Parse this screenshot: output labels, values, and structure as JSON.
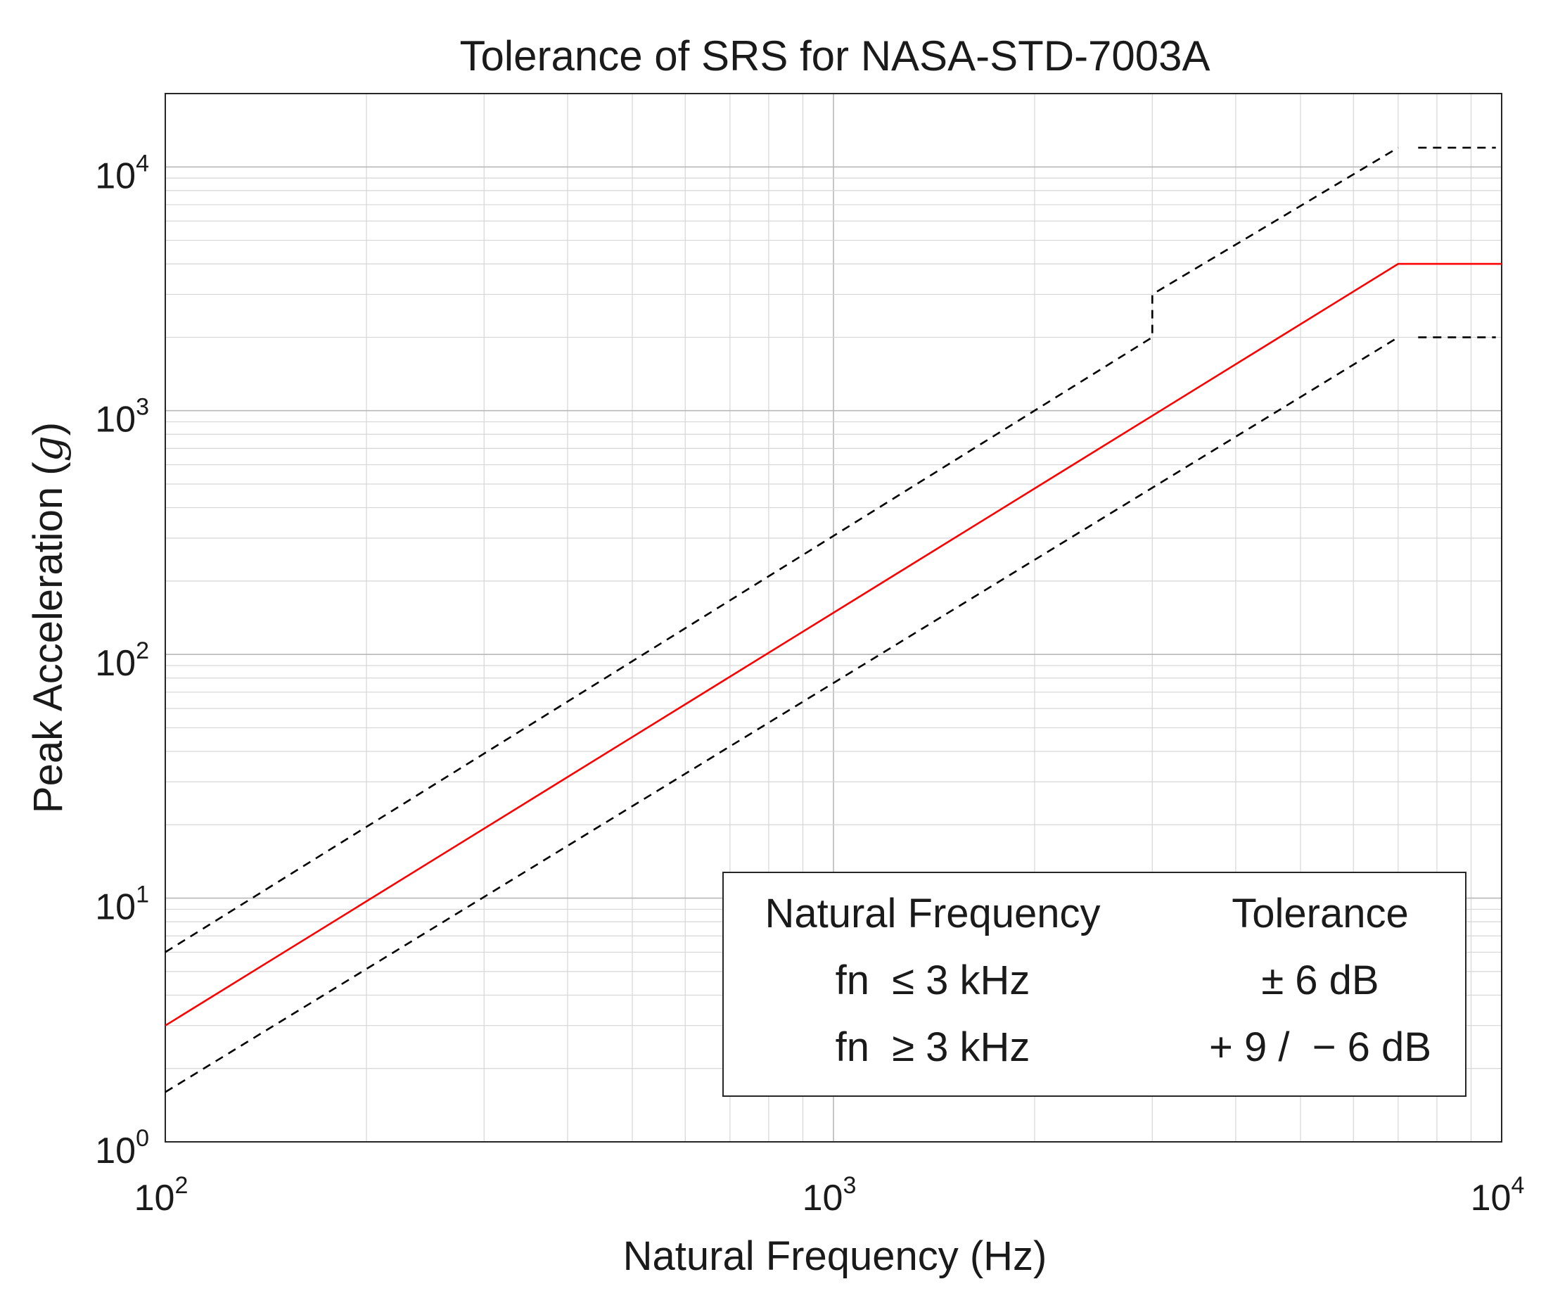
{
  "chart_data": {
    "type": "line",
    "title": "Tolerance of SRS for NASA-STD-7003A",
    "xlabel": "Natural Frequency (Hz)",
    "ylabel_text": "Peak Acceleration (",
    "ylabel_symbol": "g",
    "ylabel_close": ")",
    "xscale": "log",
    "yscale": "log",
    "xlim": [
      100,
      10000
    ],
    "ylim": [
      1,
      20000
    ],
    "grid": true,
    "minor_grid": true,
    "x_ticks": [
      {
        "value": 100,
        "base": "10",
        "exp": "2"
      },
      {
        "value": 1000,
        "base": "10",
        "exp": "3"
      },
      {
        "value": 10000,
        "base": "10",
        "exp": "4"
      }
    ],
    "y_ticks": [
      {
        "value": 1,
        "base": "10",
        "exp": "0"
      },
      {
        "value": 10,
        "base": "10",
        "exp": "1"
      },
      {
        "value": 100,
        "base": "10",
        "exp": "2"
      },
      {
        "value": 1000,
        "base": "10",
        "exp": "3"
      },
      {
        "value": 10000,
        "base": "10",
        "exp": "4"
      }
    ],
    "series": [
      {
        "name": "SRS",
        "color": "#ff0000",
        "style": "solid",
        "x": [
          100,
          7000,
          10000
        ],
        "y": [
          3,
          4000,
          4000
        ]
      },
      {
        "name": "Upper tolerance",
        "color": "#000000",
        "style": "dashed",
        "x": [
          100,
          3000,
          3000,
          7000
        ],
        "y": [
          6,
          2000,
          3000,
          12000
        ]
      },
      {
        "name": "Upper tolerance plateau",
        "color": "#000000",
        "style": "dashed",
        "x": [
          7500,
          9800
        ],
        "y": [
          12000,
          12000
        ]
      },
      {
        "name": "Lower tolerance",
        "color": "#000000",
        "style": "dashed",
        "x": [
          100,
          7000
        ],
        "y": [
          1.6,
          2000
        ]
      },
      {
        "name": "Lower tolerance plateau",
        "color": "#000000",
        "style": "dashed",
        "x": [
          7500,
          9800
        ],
        "y": [
          2000,
          2000
        ]
      }
    ],
    "legend": {
      "placement": "bottom-right",
      "headers": [
        "Natural Frequency",
        "Tolerance"
      ],
      "rows": [
        {
          "condition": "fn  ≤ 3 kHz",
          "tolerance": "± 6 dB"
        },
        {
          "condition": "fn  ≥ 3 kHz",
          "tolerance": "+ 9 /  − 6 dB"
        }
      ]
    }
  }
}
